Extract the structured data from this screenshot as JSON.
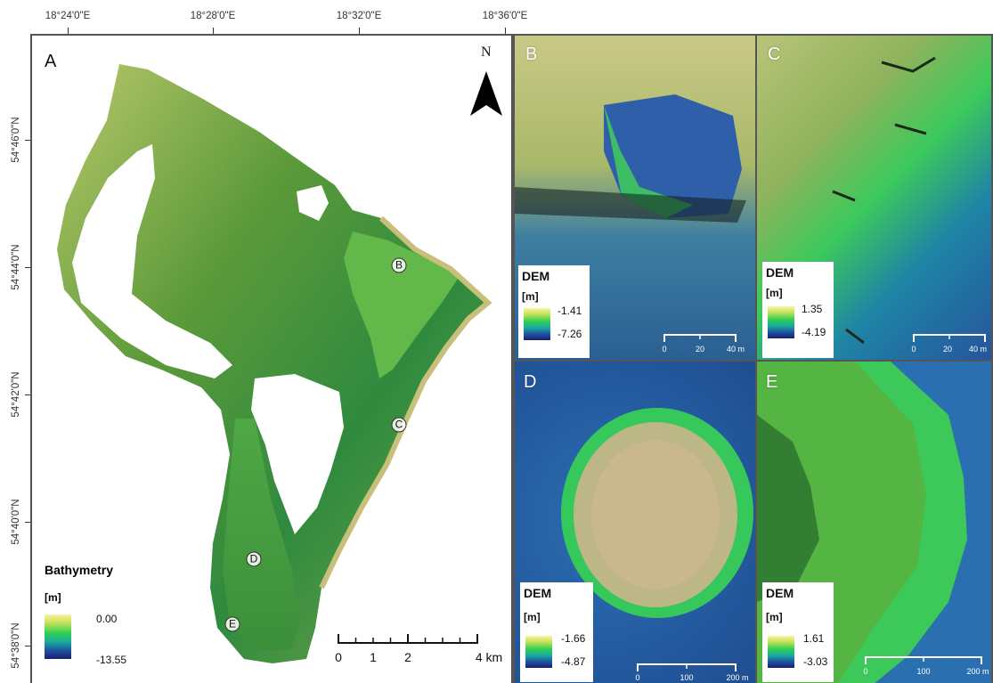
{
  "top_coords": [
    "18°24'0\"E",
    "18°28'0\"E",
    "18°32'0\"E",
    "18°36'0\"E"
  ],
  "left_coords": [
    "54°46'0\"N",
    "54°44'0\"N",
    "54°42'0\"N",
    "54°40'0\"N",
    "54°38'0\"N"
  ],
  "main": {
    "letter": "A",
    "north_label": "N",
    "legend_title": "Bathymetry",
    "legend_unit": "[m]",
    "legend_max": "0.00",
    "legend_min": "-13.55",
    "scale_labels": [
      "0",
      "1",
      "2",
      "4 km"
    ],
    "site_labels": [
      "B",
      "C",
      "D",
      "E"
    ]
  },
  "insets": [
    {
      "letter": "B",
      "legend_title": "DEM",
      "legend_unit": "[m]",
      "max": "-1.41",
      "min": "-7.26",
      "scale_labels": [
        "0",
        "20",
        "40 m"
      ]
    },
    {
      "letter": "C",
      "legend_title": "DEM",
      "legend_unit": "[m]",
      "max": "1.35",
      "min": "-4.19",
      "scale_labels": [
        "0",
        "20",
        "40 m"
      ]
    },
    {
      "letter": "D",
      "legend_title": "DEM",
      "legend_unit": "[m]",
      "max": "-1.66",
      "min": "-4.87",
      "scale_labels": [
        "0",
        "100",
        "200 m"
      ]
    },
    {
      "letter": "E",
      "legend_title": "DEM",
      "legend_unit": "[m]",
      "max": "1.61",
      "min": "-3.03",
      "scale_labels": [
        "0",
        "100",
        "200 m"
      ]
    }
  ],
  "colors": {
    "ramp_top": "#f7f3a4",
    "ramp_mid": "#2fcf52",
    "ramp_bottom": "#1a1f6e",
    "frame": "#555555"
  }
}
